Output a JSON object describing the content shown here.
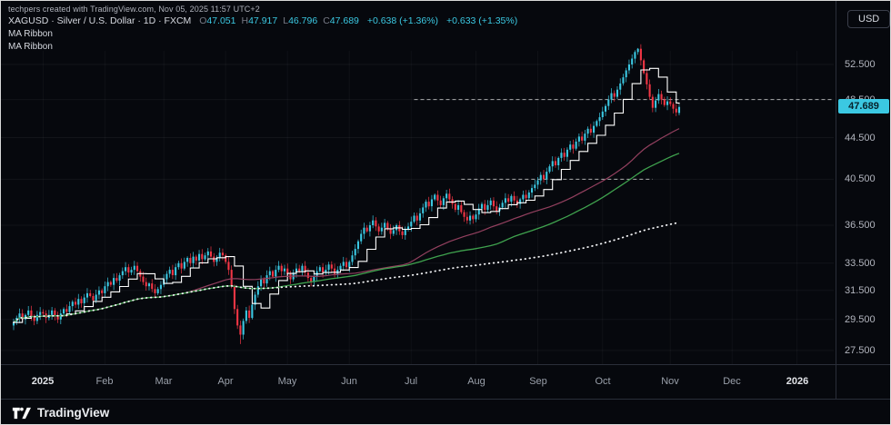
{
  "meta": {
    "attribution": "techpers created with TradingView.com, Nov 05, 2025 11:57 UTC+2"
  },
  "theme": {
    "background": "#06080d",
    "accent": "#3bc8e2",
    "up_color": "#3bc8e2",
    "down_color": "#f23645",
    "axis_text": "#b2b5be",
    "separator": "#2a2e39",
    "price_tag_text": "#07222b"
  },
  "legend": {
    "symbol_line": "XAGUSD · Silver / U.S. Dollar · 1D · FXCM",
    "ohlc": [
      {
        "label": "O",
        "value": "47.051"
      },
      {
        "label": "H",
        "value": "47.917"
      },
      {
        "label": "L",
        "value": "46.796"
      },
      {
        "label": "C",
        "value": "47.689"
      }
    ],
    "change": "+0.638 (+1.36%)",
    "change_2": "+0.633 (+1.35%)",
    "indicators": [
      "MA Ribbon",
      "MA Ribbon"
    ]
  },
  "toolbar": {
    "currency_label": "USD"
  },
  "price_scale": {
    "labels": [
      "52.500",
      "48.500",
      "44.500",
      "40.500",
      "36.500",
      "33.500",
      "31.500",
      "29.500",
      "27.500"
    ],
    "values": [
      52.5,
      48.5,
      44.5,
      40.5,
      36.5,
      33.5,
      31.5,
      29.5,
      27.5
    ],
    "last_price": "47.689",
    "last_price_value": 47.689,
    "scale_type": "log"
  },
  "time_scale": {
    "labels": [
      {
        "text": "2025",
        "index": 10,
        "major": true
      },
      {
        "text": "Feb",
        "index": 31
      },
      {
        "text": "Mar",
        "index": 51
      },
      {
        "text": "Apr",
        "index": 72
      },
      {
        "text": "May",
        "index": 93
      },
      {
        "text": "Jun",
        "index": 114
      },
      {
        "text": "Jul",
        "index": 135
      },
      {
        "text": "Aug",
        "index": 157
      },
      {
        "text": "Sep",
        "index": 178
      },
      {
        "text": "Oct",
        "index": 200
      },
      {
        "text": "Nov",
        "index": 223
      },
      {
        "text": "Dec",
        "index": 244
      },
      {
        "text": "2026",
        "index": 266,
        "major": true
      }
    ]
  },
  "footer": {
    "brand": "TradingView"
  },
  "chart_data": {
    "type": "candlestick",
    "symbol": "XAGUSD",
    "description": "Silver / U.S. Dollar",
    "interval": "1D",
    "exchange": "FXCM",
    "scale": "log",
    "ylim": [
      27.0,
      55.5
    ],
    "closes": [
      29.3,
      29.6,
      29.9,
      29.5,
      29.8,
      30.1,
      29.7,
      29.4,
      29.8,
      30.0,
      29.9,
      29.6,
      29.8,
      30.1,
      29.7,
      29.5,
      29.9,
      30.2,
      30.0,
      30.4,
      30.7,
      30.5,
      30.9,
      30.6,
      31.0,
      31.3,
      31.1,
      30.8,
      31.2,
      31.5,
      31.3,
      31.8,
      32.1,
      31.9,
      32.4,
      32.2,
      32.6,
      32.9,
      33.2,
      32.8,
      33.0,
      33.3,
      32.9,
      32.5,
      32.1,
      31.8,
      32.0,
      31.6,
      31.3,
      31.6,
      31.9,
      32.3,
      32.7,
      33.0,
      32.6,
      33.2,
      33.5,
      33.1,
      33.6,
      33.9,
      33.5,
      34.0,
      33.7,
      34.2,
      33.8,
      34.1,
      34.4,
      34.0,
      33.6,
      33.9,
      34.3,
      34.1,
      33.6,
      33.0,
      31.8,
      30.2,
      29.1,
      28.5,
      29.4,
      30.1,
      29.6,
      30.5,
      31.2,
      31.8,
      32.3,
      32.0,
      32.6,
      32.9,
      32.5,
      33.0,
      33.3,
      32.9,
      33.1,
      32.7,
      32.3,
      32.8,
      33.1,
      32.9,
      33.3,
      32.8,
      32.4,
      32.1,
      32.5,
      32.9,
      33.2,
      32.8,
      33.0,
      33.4,
      33.1,
      32.7,
      33.0,
      33.3,
      33.6,
      33.2,
      33.6,
      34.1,
      34.6,
      35.2,
      35.8,
      36.3,
      36.0,
      36.5,
      36.9,
      36.4,
      36.0,
      36.3,
      36.7,
      36.2,
      35.8,
      36.1,
      36.5,
      36.0,
      35.7,
      36.2,
      36.4,
      36.8,
      37.3,
      36.9,
      37.5,
      38.0,
      38.5,
      38.1,
      38.7,
      39.1,
      38.6,
      38.2,
      38.8,
      39.2,
      38.7,
      38.3,
      37.8,
      38.2,
      37.6,
      37.2,
      36.9,
      37.3,
      37.0,
      37.4,
      37.9,
      38.3,
      37.8,
      38.2,
      38.6,
      38.1,
      37.7,
      38.0,
      38.4,
      38.8,
      38.5,
      39.0,
      38.6,
      38.3,
      38.7,
      39.1,
      38.8,
      39.3,
      39.7,
      40.0,
      40.4,
      40.9,
      40.5,
      41.2,
      41.7,
      42.2,
      41.8,
      42.5,
      43.0,
      42.6,
      43.3,
      43.8,
      43.4,
      44.1,
      44.6,
      44.2,
      44.9,
      45.4,
      45.0,
      45.7,
      46.2,
      46.6,
      47.2,
      47.8,
      48.5,
      49.2,
      48.8,
      49.6,
      50.3,
      51.0,
      51.8,
      52.5,
      53.2,
      54.0,
      54.4,
      53.0,
      51.5,
      50.2,
      48.8,
      47.6,
      48.4,
      49.1,
      48.5,
      47.9,
      48.3,
      48.0,
      47.5,
      47.1,
      47.689
    ],
    "last_candle": {
      "open": 47.051,
      "high": 47.917,
      "low": 46.796,
      "close": 47.689
    },
    "high_overrides": {
      "212": 54.49
    },
    "low_overrides": {
      "77": 27.9
    },
    "overlays": [
      {
        "name": "ma-ribbon-fast",
        "period": 10,
        "style": "step",
        "color": "#ffffff",
        "width": 1.1
      },
      {
        "name": "ma-ribbon-mid",
        "period": 60,
        "style": "line",
        "color": "#93405f",
        "width": 1.2
      },
      {
        "name": "ma-ribbon-slow",
        "period": 90,
        "style": "line",
        "color": "#3fa24e",
        "width": 1.3
      },
      {
        "name": "ma-ribbon-long",
        "period": 0,
        "style": "dotted",
        "color": "#f2f3f5",
        "width": 1.8
      }
    ],
    "levels": [
      {
        "price": 48.5,
        "start_index": 136,
        "end_at_axis": true
      },
      {
        "price": 40.5,
        "start_index": 152,
        "end_index": 217
      }
    ]
  }
}
